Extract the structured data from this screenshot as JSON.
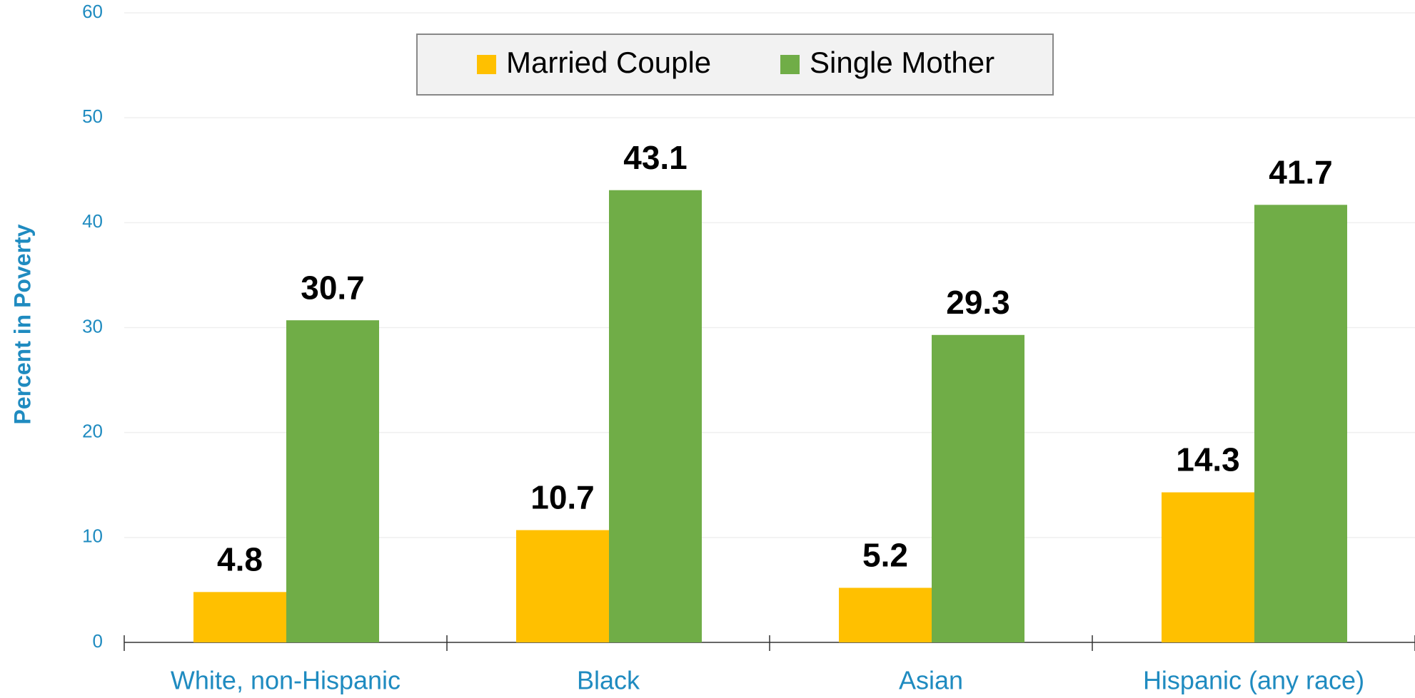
{
  "chart_data": {
    "type": "bar",
    "y_label": "Percent in Poverty",
    "categories": [
      "White, non-Hispanic",
      "Black",
      "Asian",
      "Hispanic (any race)"
    ],
    "series": [
      {
        "name": "Married Couple",
        "color": "#ffc000",
        "values": [
          4.8,
          10.7,
          5.2,
          14.3
        ]
      },
      {
        "name": "Single Mother",
        "color": "#70ad47",
        "values": [
          30.7,
          43.1,
          29.3,
          41.7
        ]
      }
    ],
    "ylim": [
      0,
      60
    ],
    "yticks": [
      0,
      10,
      20,
      30,
      40,
      50,
      60
    ],
    "grid": true,
    "legend": "top"
  }
}
